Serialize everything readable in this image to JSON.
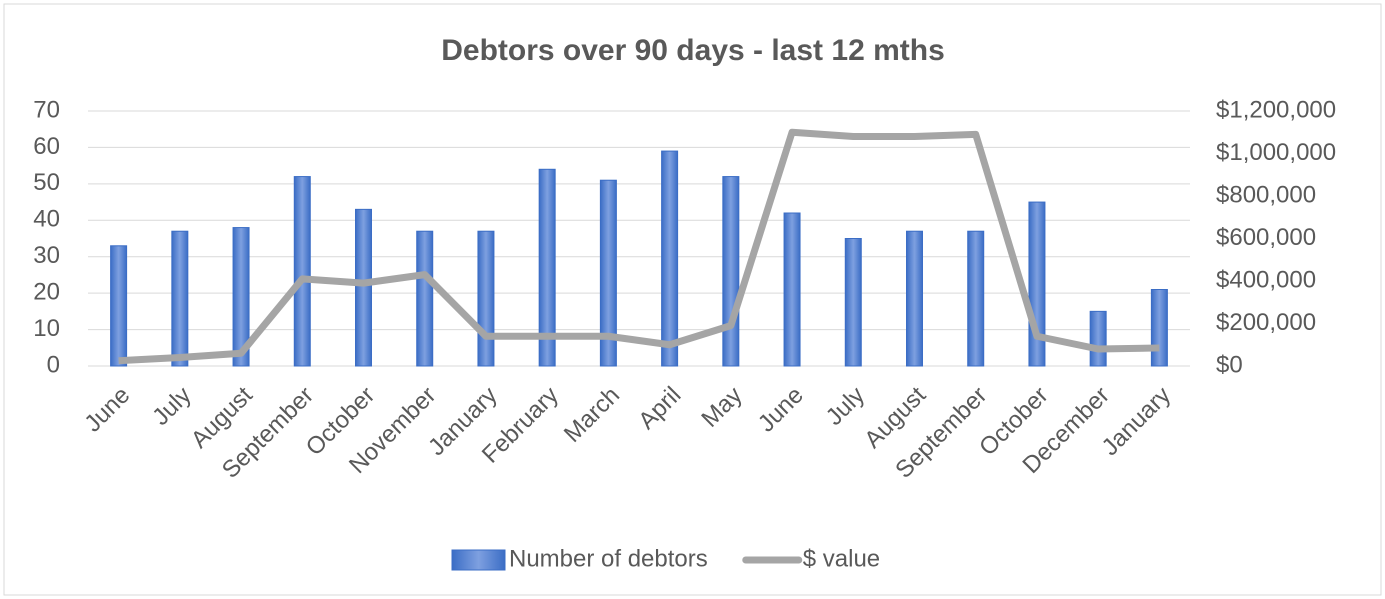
{
  "chart_data": {
    "type": "bar_line",
    "title": "Debtors over 90 days - last 12 mths",
    "categories": [
      "June",
      "July",
      "August",
      "September",
      "October",
      "November",
      "January",
      "February",
      "March",
      "April",
      "May",
      "June",
      "July",
      "August",
      "September",
      "October",
      "December",
      "January"
    ],
    "series": [
      {
        "name": "Number of debtors",
        "type": "bar",
        "color": "#3b6dc5",
        "values": [
          33,
          37,
          38,
          52,
          43,
          37,
          37,
          54,
          51,
          59,
          52,
          42,
          35,
          37,
          37,
          45,
          15,
          21
        ]
      },
      {
        "name": "$ value",
        "type": "line",
        "axis": "y2",
        "color": "#a5a5a5",
        "values": [
          25000,
          40000,
          60000,
          410000,
          390000,
          430000,
          140000,
          140000,
          140000,
          100000,
          190000,
          1100000,
          1080000,
          1080000,
          1090000,
          140000,
          80000,
          85000
        ]
      }
    ],
    "ylim": [
      0,
      70
    ],
    "yticks": [
      0,
      10,
      20,
      30,
      40,
      50,
      60,
      70
    ],
    "y2lim": [
      0,
      1200000
    ],
    "y2ticks": [
      {
        "value": 0,
        "label": "$0"
      },
      {
        "value": 200000,
        "label": "$200,000"
      },
      {
        "value": 400000,
        "label": "$400,000"
      },
      {
        "value": 600000,
        "label": "$600,000"
      },
      {
        "value": 800000,
        "label": "$800,000"
      },
      {
        "value": 1000000,
        "label": "$1,000,000"
      },
      {
        "value": 1200000,
        "label": "$1,200,000"
      }
    ],
    "grid": true,
    "legend": "bottom"
  }
}
